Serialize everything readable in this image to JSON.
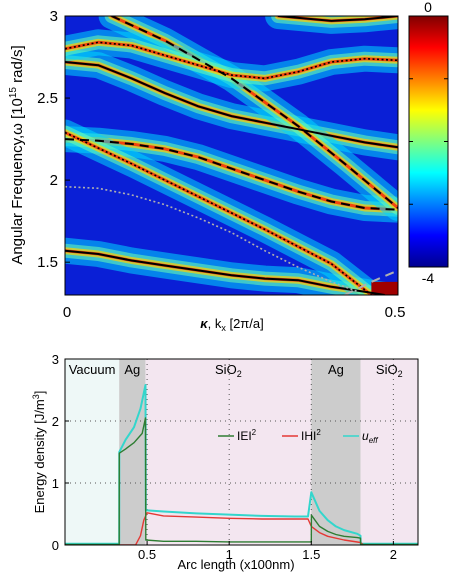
{
  "chart_data": [
    {
      "type": "heatmap",
      "title": "",
      "ylabel": "Angular Frequency,ω [10^15 rad/s]",
      "ylabel_parts": {
        "main": "Angular Frequency,ω [10",
        "exp": "15",
        "unit": " rad/s]"
      },
      "xlabel_parts": {
        "kappa": "κ",
        "rest": ", k",
        "sub": "x",
        "tail": " [2π/a]"
      },
      "xlim": [
        0,
        0.5
      ],
      "ylim": [
        1.3,
        3.0
      ],
      "x_ticks": [
        {
          "value": 0,
          "label": "0"
        },
        {
          "value": 0.5,
          "label": "0.5"
        }
      ],
      "y_ticks": [
        {
          "value": 1.5,
          "label": "1.5"
        },
        {
          "value": 2,
          "label": "2"
        },
        {
          "value": 2.5,
          "label": "2.5"
        },
        {
          "value": 3,
          "label": "3"
        }
      ],
      "colorbar": {
        "range": [
          -4,
          0
        ],
        "ticks": [
          {
            "value": 0,
            "label": "0"
          },
          {
            "value": -4,
            "label": "-4"
          }
        ],
        "colors": [
          "#00008f",
          "#0000ff",
          "#007fff",
          "#00ffff",
          "#7fff7f",
          "#ffff00",
          "#ff7f00",
          "#ff0000",
          "#7f0000"
        ]
      },
      "bands": [
        {
          "name": "",
          "style": "solid",
          "color": "#000000",
          "points": [
            [
              0.0,
              2.72
            ],
            [
              0.05,
              2.7
            ],
            [
              0.1,
              2.62
            ],
            [
              0.15,
              2.53
            ],
            [
              0.2,
              2.45
            ],
            [
              0.25,
              2.39
            ],
            [
              0.3,
              2.35
            ],
            [
              0.35,
              2.31
            ],
            [
              0.4,
              2.27
            ],
            [
              0.45,
              2.23
            ],
            [
              0.5,
              2.2
            ]
          ]
        },
        {
          "name": "",
          "style": "dashed",
          "color": "#000000",
          "points": [
            [
              0.0,
              2.25
            ],
            [
              0.05,
              2.24
            ],
            [
              0.1,
              2.22
            ],
            [
              0.15,
              2.19
            ],
            [
              0.2,
              2.14
            ],
            [
              0.25,
              2.07
            ],
            [
              0.3,
              2.0
            ],
            [
              0.35,
              1.93
            ],
            [
              0.4,
              1.87
            ],
            [
              0.45,
              1.83
            ],
            [
              0.5,
              1.82
            ]
          ]
        },
        {
          "name": "",
          "style": "dashed",
          "color": "#000000",
          "points": [
            [
              0.07,
              3.0
            ],
            [
              0.15,
              2.85
            ],
            [
              0.25,
              2.62
            ],
            [
              0.35,
              2.33
            ],
            [
              0.42,
              2.1
            ],
            [
              0.5,
              1.83
            ]
          ]
        },
        {
          "name": "",
          "style": "dotted",
          "color": "#000000",
          "points": [
            [
              0.0,
              2.8
            ],
            [
              0.05,
              2.84
            ],
            [
              0.1,
              2.82
            ],
            [
              0.15,
              2.76
            ],
            [
              0.2,
              2.7
            ],
            [
              0.25,
              2.64
            ],
            [
              0.3,
              2.62
            ],
            [
              0.35,
              2.66
            ],
            [
              0.4,
              2.72
            ],
            [
              0.45,
              2.74
            ],
            [
              0.5,
              2.73
            ]
          ]
        },
        {
          "name": "",
          "style": "solid",
          "color": "#000000",
          "points": [
            [
              0.32,
              3.0
            ],
            [
              0.4,
              2.97
            ],
            [
              0.45,
              2.98
            ],
            [
              0.5,
              3.0
            ]
          ]
        },
        {
          "name": "",
          "style": "solid",
          "color": "#000000",
          "points": [
            [
              0.0,
              1.57
            ],
            [
              0.05,
              1.55
            ],
            [
              0.1,
              1.51
            ],
            [
              0.15,
              1.48
            ],
            [
              0.2,
              1.45
            ],
            [
              0.25,
              1.42
            ],
            [
              0.3,
              1.4
            ],
            [
              0.35,
              1.39
            ],
            [
              0.4,
              1.35
            ],
            [
              0.45,
              1.32
            ],
            [
              0.48,
              1.3
            ]
          ]
        },
        {
          "name": "",
          "style": "dotted",
          "color": "#000000",
          "points": [
            [
              0.0,
              2.29
            ],
            [
              0.1,
              2.1
            ],
            [
              0.2,
              1.9
            ],
            [
              0.3,
              1.7
            ],
            [
              0.4,
              1.49
            ],
            [
              0.46,
              1.3
            ]
          ]
        },
        {
          "name": "",
          "style": "dotted",
          "color": "#b0b0b0",
          "points": [
            [
              0.0,
              1.96
            ],
            [
              0.05,
              1.95
            ],
            [
              0.1,
              1.91
            ],
            [
              0.15,
              1.85
            ],
            [
              0.2,
              1.77
            ],
            [
              0.25,
              1.68
            ],
            [
              0.3,
              1.57
            ],
            [
              0.35,
              1.47
            ],
            [
              0.4,
              1.38
            ],
            [
              0.44,
              1.32
            ]
          ]
        },
        {
          "name": "",
          "style": "dashed",
          "color": "#b0b0b0",
          "points": [
            [
              0.42,
              1.3
            ],
            [
              0.46,
              1.38
            ],
            [
              0.5,
              1.45
            ]
          ]
        }
      ]
    },
    {
      "type": "line",
      "title": "",
      "xlabel": "Arc length (x100nm)",
      "ylabel": "Energy density [J/m3]",
      "ylabel_parts": {
        "main": "Energy density [J/m",
        "exp": "3",
        "tail": "]"
      },
      "xlim": [
        0,
        2.15
      ],
      "ylim": [
        0,
        3
      ],
      "x_ticks": [
        {
          "value": 0.5,
          "label": "0.5"
        },
        {
          "value": 1,
          "label": "1"
        },
        {
          "value": 1.5,
          "label": "1.5"
        },
        {
          "value": 2,
          "label": "2"
        }
      ],
      "y_ticks": [
        {
          "value": 0,
          "label": "0"
        },
        {
          "value": 1,
          "label": "1"
        },
        {
          "value": 2,
          "label": "2"
        },
        {
          "value": 3,
          "label": "3"
        }
      ],
      "grid": true,
      "regions": [
        {
          "label": "Vacuum",
          "x0": 0.0,
          "x1": 0.33,
          "color": "#eef8f7"
        },
        {
          "label": "Ag",
          "x0": 0.33,
          "x1": 0.49,
          "color": "#cccccc"
        },
        {
          "label": "SiO",
          "sub": "2",
          "x0": 0.49,
          "x1": 1.5,
          "color": "#f3e6f0"
        },
        {
          "label": "Ag",
          "x0": 1.5,
          "x1": 1.8,
          "color": "#cccccc"
        },
        {
          "label": "SiO",
          "sub": "2",
          "x0": 1.8,
          "x1": 2.15,
          "color": "#f3e6f0"
        }
      ],
      "legend": {
        "placement": "middle"
      },
      "series": [
        {
          "name": "IEI2",
          "name_parts": {
            "main": "IEI",
            "sup": "2"
          },
          "color": "#2e7d32",
          "points": [
            [
              0.0,
              0.01
            ],
            [
              0.33,
              0.01
            ],
            [
              0.331,
              1.48
            ],
            [
              0.37,
              1.55
            ],
            [
              0.42,
              1.65
            ],
            [
              0.47,
              1.8
            ],
            [
              0.49,
              2.05
            ],
            [
              0.492,
              0.08
            ],
            [
              0.6,
              0.06
            ],
            [
              0.8,
              0.06
            ],
            [
              1.0,
              0.05
            ],
            [
              1.2,
              0.05
            ],
            [
              1.4,
              0.05
            ],
            [
              1.5,
              0.05
            ],
            [
              1.501,
              0.48
            ],
            [
              1.55,
              0.3
            ],
            [
              1.6,
              0.22
            ],
            [
              1.65,
              0.17
            ],
            [
              1.7,
              0.14
            ],
            [
              1.78,
              0.12
            ],
            [
              1.8,
              0.11
            ],
            [
              1.801,
              0.01
            ],
            [
              2.15,
              0.01
            ]
          ]
        },
        {
          "name": "IHI2",
          "name_parts": {
            "main": "IHI",
            "sup": "2"
          },
          "color": "#e53935",
          "points": [
            [
              0.0,
              0.0
            ],
            [
              0.43,
              0.0
            ],
            [
              0.46,
              0.15
            ],
            [
              0.48,
              0.4
            ],
            [
              0.5,
              0.52
            ],
            [
              0.6,
              0.47
            ],
            [
              0.8,
              0.45
            ],
            [
              1.0,
              0.43
            ],
            [
              1.2,
              0.42
            ],
            [
              1.4,
              0.42
            ],
            [
              1.48,
              0.42
            ],
            [
              1.5,
              0.3
            ],
            [
              1.55,
              0.2
            ],
            [
              1.6,
              0.14
            ],
            [
              1.7,
              0.08
            ],
            [
              1.8,
              0.04
            ],
            [
              1.82,
              0.0
            ],
            [
              2.15,
              0.0
            ]
          ]
        },
        {
          "name": "ueff",
          "name_parts": {
            "main": "u",
            "sub": "eff"
          },
          "color": "#33d6cc",
          "points": [
            [
              0.0,
              0.02
            ],
            [
              0.33,
              0.02
            ],
            [
              0.331,
              1.5
            ],
            [
              0.37,
              1.7
            ],
            [
              0.42,
              1.9
            ],
            [
              0.46,
              2.2
            ],
            [
              0.49,
              2.58
            ],
            [
              0.492,
              0.56
            ],
            [
              0.6,
              0.54
            ],
            [
              0.8,
              0.51
            ],
            [
              1.0,
              0.49
            ],
            [
              1.2,
              0.47
            ],
            [
              1.4,
              0.46
            ],
            [
              1.48,
              0.46
            ],
            [
              1.5,
              0.85
            ],
            [
              1.55,
              0.55
            ],
            [
              1.6,
              0.4
            ],
            [
              1.65,
              0.3
            ],
            [
              1.7,
              0.24
            ],
            [
              1.78,
              0.18
            ],
            [
              1.8,
              0.15
            ],
            [
              1.801,
              0.02
            ],
            [
              2.15,
              0.02
            ]
          ]
        }
      ]
    }
  ]
}
